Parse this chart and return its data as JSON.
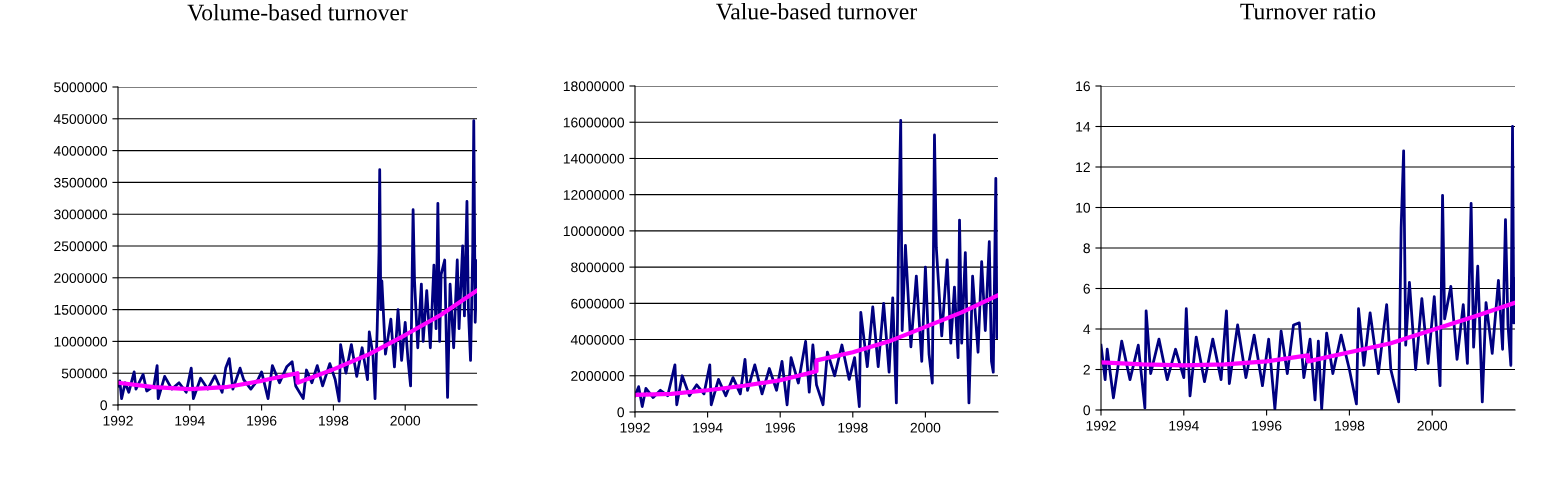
{
  "chart_data": [
    {
      "type": "line",
      "title": "Volume-based turnover",
      "xlim": [
        1992,
        2002
      ],
      "xticks": [
        1992,
        1994,
        1996,
        1998,
        2000
      ],
      "ylim": [
        0,
        5000000
      ],
      "yticks": [
        0,
        500000,
        1000000,
        1500000,
        2000000,
        2500000,
        3000000,
        3500000,
        4000000,
        4500000,
        5000000
      ],
      "grid": "y",
      "series": [
        {
          "color": "#000080",
          "x": [
            1992.0,
            1992.05,
            1992.1,
            1992.2,
            1992.3,
            1992.45,
            1992.5,
            1992.7,
            1992.8,
            1993.0,
            1993.09,
            1993.12,
            1993.3,
            1993.5,
            1993.7,
            1993.9,
            1994.04,
            1994.1,
            1994.3,
            1994.5,
            1994.7,
            1994.9,
            1995.0,
            1995.1,
            1995.2,
            1995.4,
            1995.5,
            1995.7,
            1995.9,
            1996.0,
            1996.18,
            1996.3,
            1996.5,
            1996.7,
            1996.85,
            1996.95,
            1997.16,
            1997.25,
            1997.4,
            1997.55,
            1997.7,
            1997.9,
            1998.05,
            1998.16,
            1998.2,
            1998.35,
            1998.5,
            1998.65,
            1998.8,
            1998.95,
            1999.0,
            1999.1,
            1999.16,
            1999.22,
            1999.27,
            1999.29,
            1999.32,
            1999.35,
            1999.45,
            1999.6,
            1999.7,
            1999.8,
            1999.9,
            2000.0,
            2000.08,
            2000.15,
            2000.22,
            2000.26,
            2000.35,
            2000.45,
            2000.5,
            2000.6,
            2000.7,
            2000.8,
            2000.86,
            2000.91,
            2000.96,
            2001.0,
            2001.1,
            2001.18,
            2001.25,
            2001.35,
            2001.45,
            2001.5,
            2001.6,
            2001.65,
            2001.72,
            2001.76,
            2001.82,
            2001.88,
            2001.91,
            2001.95,
            2002.0
          ],
          "values": [
            300000,
            380000,
            100000,
            350000,
            200000,
            520000,
            250000,
            480000,
            220000,
            300000,
            620000,
            100000,
            450000,
            250000,
            350000,
            200000,
            580000,
            100000,
            420000,
            250000,
            460000,
            200000,
            580000,
            730000,
            250000,
            580000,
            400000,
            250000,
            400000,
            520000,
            100000,
            620000,
            350000,
            600000,
            680000,
            300000,
            100000,
            550000,
            350000,
            620000,
            300000,
            650000,
            400000,
            60000,
            950000,
            500000,
            950000,
            450000,
            900000,
            400000,
            1150000,
            800000,
            100000,
            1200000,
            2400000,
            3700000,
            1500000,
            1950000,
            800000,
            1350000,
            600000,
            1500000,
            700000,
            1300000,
            700000,
            300000,
            3070000,
            1950000,
            900000,
            1900000,
            1000000,
            1800000,
            900000,
            2200000,
            1200000,
            3170000,
            1000000,
            2050000,
            2280000,
            120000,
            1900000,
            900000,
            2280000,
            1200000,
            2500000,
            1400000,
            3200000,
            1500000,
            700000,
            2400000,
            4470000,
            1300000,
            2270000
          ]
        },
        {
          "color": "#ff00ff",
          "x": [
            1992,
            1993,
            1994,
            1995,
            1996,
            1997,
            1997,
            1998,
            1999,
            2000,
            2001,
            2002
          ],
          "values": [
            350000,
            280000,
            250000,
            280000,
            380000,
            500000,
            350000,
            560000,
            800000,
            1100000,
            1420000,
            1800000
          ]
        }
      ]
    },
    {
      "type": "line",
      "title": "Value-based turnover",
      "xlim": [
        1992,
        2002
      ],
      "xticks": [
        1992,
        1994,
        1996,
        1998,
        2000
      ],
      "ylim": [
        0,
        18000000
      ],
      "yticks": [
        0,
        2000000,
        4000000,
        6000000,
        8000000,
        10000000,
        12000000,
        14000000,
        16000000,
        18000000
      ],
      "grid": "y",
      "series": [
        {
          "color": "#000080",
          "x": [
            1992.0,
            1992.1,
            1992.2,
            1992.3,
            1992.5,
            1992.7,
            1992.9,
            1993.1,
            1993.15,
            1993.3,
            1993.5,
            1993.7,
            1993.9,
            1994.06,
            1994.1,
            1994.3,
            1994.5,
            1994.7,
            1994.9,
            1995.03,
            1995.1,
            1995.3,
            1995.5,
            1995.7,
            1995.9,
            1996.05,
            1996.19,
            1996.3,
            1996.5,
            1996.7,
            1996.8,
            1996.9,
            1997.0,
            1997.18,
            1997.3,
            1997.5,
            1997.7,
            1997.9,
            1998.05,
            1998.18,
            1998.22,
            1998.4,
            1998.55,
            1998.7,
            1998.85,
            1999.0,
            1999.1,
            1999.2,
            1999.27,
            1999.32,
            1999.36,
            1999.45,
            1999.6,
            1999.75,
            1999.9,
            2000.0,
            2000.1,
            2000.19,
            2000.25,
            2000.3,
            2000.45,
            2000.6,
            2000.7,
            2000.8,
            2000.9,
            2000.94,
            2001.0,
            2001.1,
            2001.2,
            2001.3,
            2001.45,
            2001.55,
            2001.65,
            2001.76,
            2001.82,
            2001.87,
            2001.94,
            2001.97,
            2002.0
          ],
          "values": [
            900000,
            1400000,
            300000,
            1300000,
            800000,
            1200000,
            900000,
            2600000,
            400000,
            2000000,
            900000,
            1500000,
            1000000,
            2600000,
            400000,
            1800000,
            900000,
            1900000,
            1000000,
            2900000,
            1200000,
            2600000,
            1000000,
            2400000,
            1200000,
            2800000,
            400000,
            3000000,
            1600000,
            3900000,
            1100000,
            3700000,
            1500000,
            400000,
            3300000,
            2000000,
            3700000,
            1800000,
            3000000,
            300000,
            5500000,
            2500000,
            5800000,
            2500000,
            6000000,
            2200000,
            6300000,
            500000,
            10800000,
            16100000,
            4500000,
            9200000,
            3600000,
            7500000,
            2800000,
            8000000,
            3200000,
            1600000,
            15300000,
            9100000,
            4200000,
            8400000,
            3800000,
            6900000,
            3000000,
            10600000,
            3800000,
            8800000,
            500000,
            7500000,
            3300000,
            8300000,
            4500000,
            9400000,
            2800000,
            2200000,
            12900000,
            4100000,
            6600000
          ]
        },
        {
          "color": "#ff00ff",
          "x": [
            1992,
            1993,
            1994,
            1995,
            1996,
            1997,
            1997,
            1998,
            1999,
            2000,
            2001,
            2002
          ],
          "values": [
            950000,
            1000000,
            1200000,
            1450000,
            1750000,
            2250000,
            2850000,
            3300000,
            3900000,
            4700000,
            5500000,
            6450000
          ]
        }
      ]
    },
    {
      "type": "line",
      "title": "Turnover ratio",
      "xlim": [
        1992,
        2002
      ],
      "xticks": [
        1992,
        1994,
        1996,
        1998,
        2000
      ],
      "ylim": [
        0,
        16
      ],
      "yticks": [
        0,
        2,
        4,
        6,
        8,
        10,
        12,
        14,
        16
      ],
      "grid": "y",
      "series": [
        {
          "color": "#000080",
          "x": [
            1992.0,
            1992.1,
            1992.15,
            1992.3,
            1992.5,
            1992.7,
            1992.9,
            1993.06,
            1993.09,
            1993.2,
            1993.4,
            1993.6,
            1993.8,
            1994.0,
            1994.06,
            1994.15,
            1994.3,
            1994.5,
            1994.7,
            1994.9,
            1995.03,
            1995.1,
            1995.3,
            1995.5,
            1995.7,
            1995.9,
            1996.05,
            1996.2,
            1996.35,
            1996.5,
            1996.65,
            1996.79,
            1996.9,
            1997.05,
            1997.17,
            1997.25,
            1997.33,
            1997.45,
            1997.6,
            1997.8,
            1998.0,
            1998.17,
            1998.22,
            1998.35,
            1998.5,
            1998.7,
            1998.9,
            1999.0,
            1999.19,
            1999.25,
            1999.31,
            1999.36,
            1999.45,
            1999.6,
            1999.75,
            1999.9,
            2000.05,
            2000.19,
            2000.25,
            2000.3,
            2000.45,
            2000.6,
            2000.75,
            2000.85,
            2000.94,
            2001.0,
            2001.1,
            2001.21,
            2001.3,
            2001.45,
            2001.6,
            2001.7,
            2001.77,
            2001.83,
            2001.9,
            2001.94,
            2001.97,
            2002.0
          ],
          "values": [
            3.2,
            1.5,
            3.0,
            0.6,
            3.4,
            1.5,
            3.2,
            0.1,
            4.9,
            1.8,
            3.5,
            1.5,
            3.0,
            1.6,
            5.0,
            0.7,
            3.6,
            1.4,
            3.5,
            1.5,
            4.9,
            1.3,
            4.2,
            1.6,
            3.7,
            1.2,
            3.5,
            0.05,
            3.9,
            1.8,
            4.2,
            4.3,
            1.6,
            3.5,
            0.5,
            3.4,
            0.05,
            3.8,
            1.8,
            3.7,
            2.0,
            0.3,
            5.0,
            2.2,
            4.8,
            1.8,
            5.2,
            2.0,
            0.4,
            9.0,
            12.8,
            3.2,
            6.3,
            2.0,
            5.5,
            2.3,
            5.6,
            1.2,
            10.6,
            4.5,
            6.1,
            2.5,
            5.2,
            2.3,
            10.2,
            3.1,
            7.1,
            0.4,
            5.3,
            2.8,
            6.4,
            3.0,
            9.4,
            4.2,
            2.2,
            14.0,
            4.3,
            6.5
          ]
        },
        {
          "color": "#ff00ff",
          "x": [
            1992,
            1993,
            1994,
            1995,
            1996,
            1997,
            1997,
            1998,
            1999,
            2000,
            2001,
            2002
          ],
          "values": [
            2.35,
            2.25,
            2.2,
            2.25,
            2.4,
            2.7,
            2.4,
            2.85,
            3.3,
            3.95,
            4.6,
            5.3
          ]
        }
      ]
    }
  ]
}
